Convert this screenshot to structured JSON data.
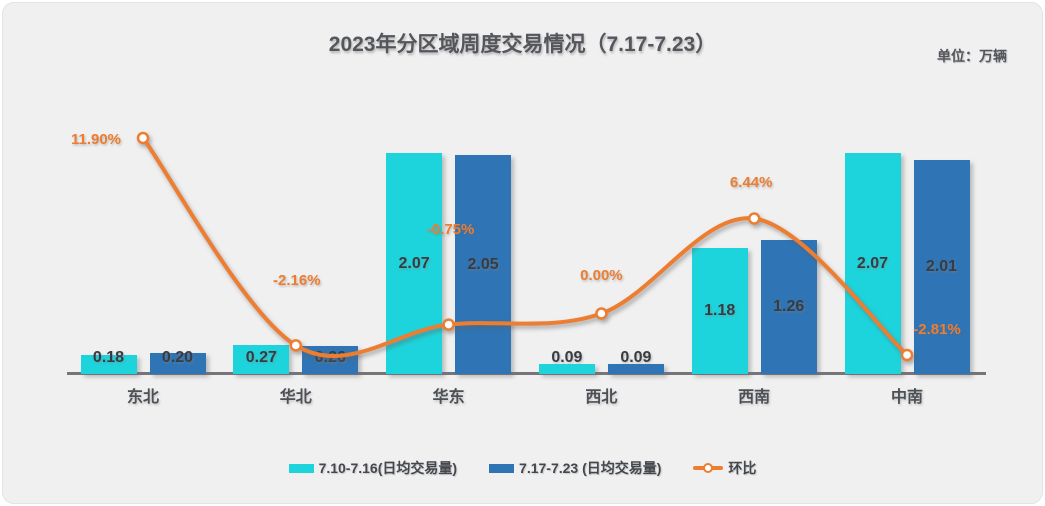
{
  "header": {
    "title": "2023年分区域周度交易情况（7.17-7.23）",
    "unit_label": "单位：万辆"
  },
  "colors": {
    "background": "#F0F0F1",
    "series1_cyan": "#1ED4DC",
    "series2_blue": "#2F74B5",
    "line_orange": "#ED7D31",
    "text_dark": "#54565B",
    "axis_gray": "#76767A"
  },
  "legend": {
    "items": [
      {
        "label": "7.10-7.16(日均交易量)",
        "swatch": "cyan-square"
      },
      {
        "label": "7.17-7.23 (日均交易量)",
        "swatch": "blue-square"
      },
      {
        "label": "环比",
        "swatch": "orange-line-with-marker"
      }
    ]
  },
  "chart_data": {
    "type": "bar",
    "combo": "bar+line",
    "title": "2023年分区域周度交易情况（7.17-7.23）",
    "ylabel": "万辆",
    "categories": [
      "东北",
      "华北",
      "华东",
      "西北",
      "西南",
      "中南"
    ],
    "series": [
      {
        "name": "7.10-7.16(日均交易量)",
        "type": "bar",
        "color": "#1ED4DC",
        "values": [
          0.18,
          0.27,
          2.07,
          0.09,
          1.18,
          2.07
        ],
        "labels": [
          "0.18",
          "0.27",
          "2.07",
          "0.09",
          "1.18",
          "2.07"
        ]
      },
      {
        "name": "7.17-7.23 (日均交易量)",
        "type": "bar",
        "color": "#2F74B5",
        "values": [
          0.2,
          0.26,
          2.05,
          0.09,
          1.26,
          2.01
        ],
        "labels": [
          "0.20",
          "0.26",
          "2.05",
          "0.09",
          "1.26",
          "2.01"
        ]
      },
      {
        "name": "环比",
        "type": "line",
        "axis": "secondary",
        "unit": "%",
        "color": "#ED7D31",
        "values": [
          11.9,
          -2.16,
          -0.75,
          0.0,
          6.44,
          -2.81
        ],
        "labels": [
          "11.90%",
          "-2.16%",
          "-0.75%",
          "0.00%",
          "6.44%",
          "-2.81%"
        ]
      }
    ],
    "axes_hidden": true,
    "grid": false,
    "value_labels_shown": true,
    "legend_position": "bottom"
  }
}
